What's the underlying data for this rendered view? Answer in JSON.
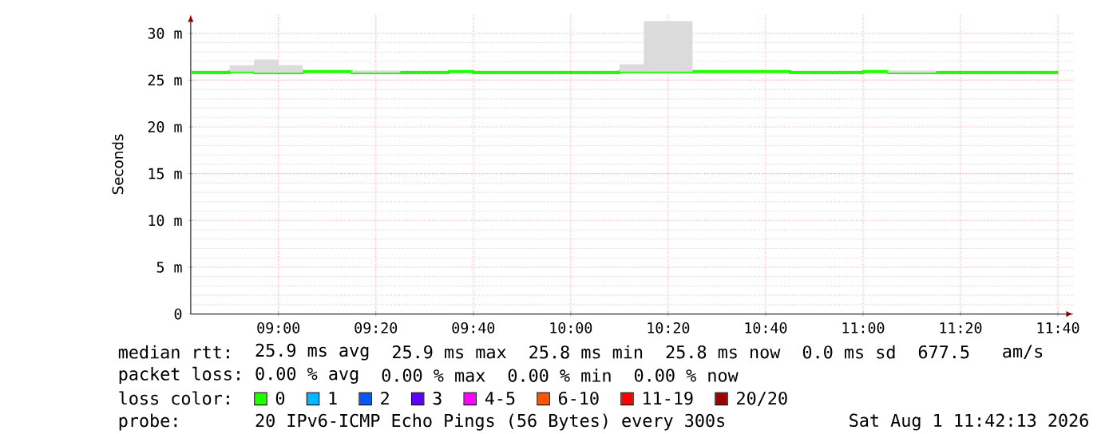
{
  "chart_data": {
    "type": "line",
    "ylabel": "Seconds",
    "legend_title": "loss color:",
    "legend": "bottom",
    "grid": true,
    "x": [
      8.7,
      8.8333,
      8.8333,
      8.9167,
      8.9167,
      9.0,
      9.0,
      9.0833,
      9.0833,
      9.25,
      9.25,
      9.4167,
      9.4167,
      9.5833,
      9.5833,
      9.6667,
      9.6667,
      10.1667,
      10.1667,
      10.25,
      10.25,
      10.4167,
      10.4167,
      10.75,
      10.75,
      11.0,
      11.0,
      11.0833,
      11.0833,
      11.25,
      11.25,
      11.6667
    ],
    "xlim": [
      8.7,
      11.72
    ],
    "ylim": [
      0,
      32
    ],
    "xticks": [
      {
        "value": 9,
        "label": "09:00"
      },
      {
        "value": 9.3333,
        "label": "09:20"
      },
      {
        "value": 9.6667,
        "label": "09:40"
      },
      {
        "value": 10,
        "label": "10:00"
      },
      {
        "value": 10.3333,
        "label": "10:20"
      },
      {
        "value": 10.6667,
        "label": "10:40"
      },
      {
        "value": 11,
        "label": "11:00"
      },
      {
        "value": 11.3333,
        "label": "11:20"
      },
      {
        "value": 11.6667,
        "label": "11:40"
      }
    ],
    "yticks": [
      {
        "value": 0,
        "label": "0"
      },
      {
        "value": 5,
        "label": "5 m"
      },
      {
        "value": 10,
        "label": "10 m"
      },
      {
        "value": 15,
        "label": "15 m"
      },
      {
        "value": 20,
        "label": "20 m"
      },
      {
        "value": 25,
        "label": "25 m"
      },
      {
        "value": 30,
        "label": "30 m"
      }
    ],
    "series": [
      {
        "name": "0",
        "color": "#20ff00",
        "values": [
          25.8,
          25.8,
          25.9,
          25.9,
          25.8,
          25.8,
          25.8,
          25.8,
          25.9,
          25.9,
          25.8,
          25.8,
          25.8,
          25.8,
          25.9,
          25.9,
          25.8,
          25.8,
          25.9,
          25.9,
          25.9,
          25.9,
          25.9,
          25.9,
          25.8,
          25.8,
          25.9,
          25.9,
          25.8,
          25.8,
          25.8,
          25.8
        ],
        "lower": [
          null,
          null,
          25.9,
          25.9,
          25.8,
          25.8,
          25.8,
          25.8,
          null,
          null,
          25.8,
          25.8,
          null,
          null,
          null,
          null,
          null,
          null,
          25.9,
          25.9,
          25.9,
          25.9,
          null,
          null,
          null,
          null,
          null,
          null,
          25.8,
          25.8,
          null,
          null
        ],
        "upper": [
          null,
          null,
          26.6,
          26.6,
          27.2,
          27.2,
          26.6,
          26.6,
          null,
          null,
          26.0,
          26.0,
          null,
          null,
          null,
          null,
          null,
          null,
          26.7,
          26.7,
          31.3,
          31.3,
          null,
          null,
          null,
          null,
          null,
          null,
          26.0,
          26.0,
          null,
          null
        ]
      },
      {
        "name": "1",
        "color": "#00b8ff",
        "values": [
          null,
          null,
          null,
          null,
          null,
          null,
          null,
          null,
          null,
          null,
          null,
          null,
          null,
          null,
          null,
          null,
          null,
          null,
          null,
          null,
          null,
          null,
          null,
          null,
          null,
          null,
          null,
          null,
          null,
          null,
          null,
          null
        ]
      },
      {
        "name": "2",
        "color": "#0059ff",
        "values": [
          null,
          null,
          null,
          null,
          null,
          null,
          null,
          null,
          null,
          null,
          null,
          null,
          null,
          null,
          null,
          null,
          null,
          null,
          null,
          null,
          null,
          null,
          null,
          null,
          null,
          null,
          null,
          null,
          null,
          null,
          null,
          null
        ]
      },
      {
        "name": "3",
        "color": "#5e00ff",
        "values": [
          null,
          null,
          null,
          null,
          null,
          null,
          null,
          null,
          null,
          null,
          null,
          null,
          null,
          null,
          null,
          null,
          null,
          null,
          null,
          null,
          null,
          null,
          null,
          null,
          null,
          null,
          null,
          null,
          null,
          null,
          null,
          null
        ]
      },
      {
        "name": "4-5",
        "color": "#ff00ff",
        "values": [
          null,
          null,
          null,
          null,
          null,
          null,
          null,
          null,
          null,
          null,
          null,
          null,
          null,
          null,
          null,
          null,
          null,
          null,
          null,
          null,
          null,
          null,
          null,
          null,
          null,
          null,
          null,
          null,
          null,
          null,
          null,
          null
        ]
      },
      {
        "name": "6-10",
        "color": "#ff5500",
        "values": [
          null,
          null,
          null,
          null,
          null,
          null,
          null,
          null,
          null,
          null,
          null,
          null,
          null,
          null,
          null,
          null,
          null,
          null,
          null,
          null,
          null,
          null,
          null,
          null,
          null,
          null,
          null,
          null,
          null,
          null,
          null,
          null
        ]
      },
      {
        "name": "11-19",
        "color": "#ff0000",
        "values": [
          null,
          null,
          null,
          null,
          null,
          null,
          null,
          null,
          null,
          null,
          null,
          null,
          null,
          null,
          null,
          null,
          null,
          null,
          null,
          null,
          null,
          null,
          null,
          null,
          null,
          null,
          null,
          null,
          null,
          null,
          null,
          null
        ]
      },
      {
        "name": "20/20",
        "color": "#a10000",
        "values": [
          null,
          null,
          null,
          null,
          null,
          null,
          null,
          null,
          null,
          null,
          null,
          null,
          null,
          null,
          null,
          null,
          null,
          null,
          null,
          null,
          null,
          null,
          null,
          null,
          null,
          null,
          null,
          null,
          null,
          null,
          null,
          null
        ]
      }
    ],
    "annotations": [
      "median rtt:",
      "25.9 ms avg",
      "25.9 ms max",
      "25.8 ms min",
      "25.8 ms now",
      "0.0 ms sd",
      "677.5",
      "am/s",
      "packet loss:",
      "0.00 % avg",
      "0.00 % max",
      "0.00 % min",
      "0.00 % now",
      "probe:",
      "20 IPv6-ICMP Echo Pings (56 Bytes) every 300s",
      "Sat Aug 1 11:42:13 2026"
    ]
  }
}
